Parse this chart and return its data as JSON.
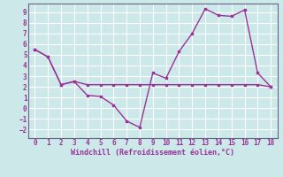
{
  "line1_x": [
    0,
    1,
    2,
    3,
    4,
    5,
    6,
    7,
    8,
    9,
    10,
    11,
    12,
    13,
    14,
    15,
    16,
    17,
    18
  ],
  "line1_y": [
    5.5,
    4.8,
    2.2,
    2.5,
    1.2,
    1.1,
    0.3,
    -1.2,
    -1.8,
    3.3,
    2.8,
    5.3,
    7.0,
    9.3,
    8.7,
    8.6,
    9.2,
    3.3,
    2.0
  ],
  "line2_x": [
    0,
    1,
    2,
    3,
    4,
    5,
    6,
    7,
    8,
    9,
    10,
    11,
    12,
    13,
    14,
    15,
    16,
    17,
    18
  ],
  "line2_y": [
    5.5,
    4.8,
    2.2,
    2.5,
    2.2,
    2.2,
    2.2,
    2.2,
    2.2,
    2.2,
    2.2,
    2.2,
    2.2,
    2.2,
    2.2,
    2.2,
    2.2,
    2.2,
    2.0
  ],
  "line_color": "#993399",
  "bg_color": "#cce8e8",
  "grid_color": "#ffffff",
  "xlabel": "Windchill (Refroidissement éolien,°C)",
  "xlim": [
    -0.5,
    18.5
  ],
  "ylim": [
    -2.8,
    9.8
  ],
  "xticks": [
    0,
    1,
    2,
    3,
    4,
    5,
    6,
    7,
    8,
    9,
    10,
    11,
    12,
    13,
    14,
    15,
    16,
    17,
    18
  ],
  "yticks": [
    -2,
    -1,
    0,
    1,
    2,
    3,
    4,
    5,
    6,
    7,
    8,
    9
  ]
}
